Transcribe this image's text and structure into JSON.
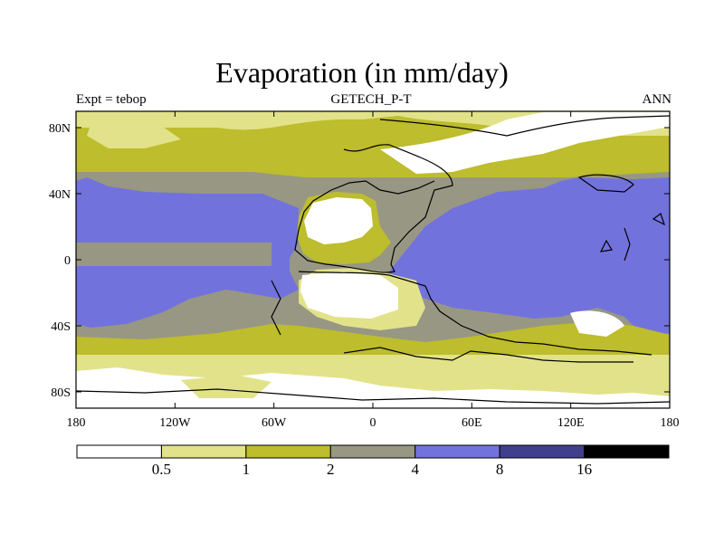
{
  "header": {
    "title": "Evaporation (in mm/day)",
    "left_label": "Expt = tebop",
    "center_label": "GETECH_P-T",
    "right_label": "ANN"
  },
  "axes": {
    "y_ticks": [
      "80N",
      "40N",
      "0",
      "40S",
      "80S"
    ],
    "x_ticks": [
      "180",
      "120W",
      "60W",
      "0",
      "60E",
      "120E",
      "180"
    ]
  },
  "colorbar": {
    "labels": [
      "0.5",
      "1",
      "2",
      "4",
      "8",
      "16"
    ],
    "colors": [
      "#ffffff",
      "#e2e28a",
      "#bdbd2d",
      "#979784",
      "#7272dd",
      "#3f3f8e",
      "#000000"
    ]
  },
  "palette": {
    "white": "#ffffff",
    "light_yellow": "#e2e28a",
    "olive": "#bdbd2d",
    "gray": "#979784",
    "blue": "#7272dd"
  }
}
